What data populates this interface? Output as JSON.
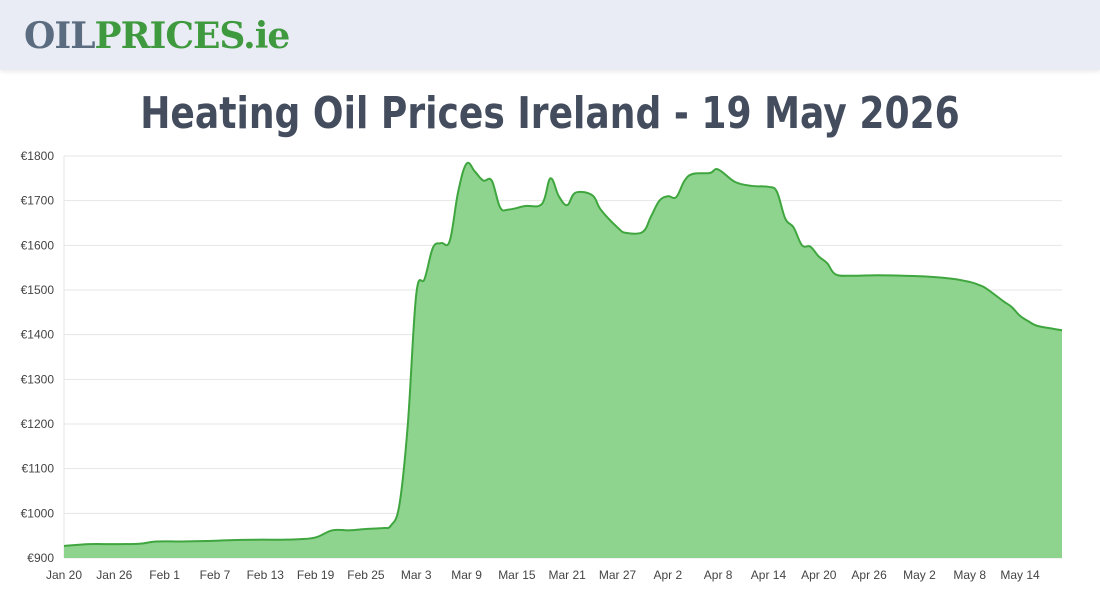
{
  "header": {
    "logo_oil": "OIL",
    "logo_prices": "PRICES",
    "logo_ie": ".ie"
  },
  "title": "Heating Oil Prices Ireland - 19 May 2026",
  "colors": {
    "area_fill": "#8fd48e",
    "line": "#3fa63f",
    "grid": "#e6e6e6",
    "header_bg": "#e9ecf4"
  },
  "chart_data": {
    "type": "area",
    "title": "Heating Oil Prices Ireland - 19 May 2026",
    "xlabel": "",
    "ylabel": "",
    "ylim": [
      900,
      1800
    ],
    "yticks": [
      900,
      1000,
      1100,
      1200,
      1300,
      1400,
      1500,
      1600,
      1700,
      1800
    ],
    "ytick_labels": [
      "€900",
      "€1000",
      "€1100",
      "€1200",
      "€1300",
      "€1400",
      "€1500",
      "€1600",
      "€1700",
      "€1800"
    ],
    "xrange": [
      "2026-01-20",
      "2026-05-19"
    ],
    "xticks": [
      "2026-01-20",
      "2026-01-26",
      "2026-02-01",
      "2026-02-07",
      "2026-02-13",
      "2026-02-19",
      "2026-02-25",
      "2026-03-03",
      "2026-03-09",
      "2026-03-15",
      "2026-03-21",
      "2026-03-27",
      "2026-04-02",
      "2026-04-08",
      "2026-04-14",
      "2026-04-20",
      "2026-04-26",
      "2026-05-02",
      "2026-05-08",
      "2026-05-14"
    ],
    "xtick_labels": [
      "Jan 20",
      "Jan 26",
      "Feb 1",
      "Feb 7",
      "Feb 13",
      "Feb 19",
      "Feb 25",
      "Mar 3",
      "Mar 9",
      "Mar 15",
      "Mar 21",
      "Mar 27",
      "Apr 2",
      "Apr 8",
      "Apr 14",
      "Apr 20",
      "Apr 26",
      "May 2",
      "May 8",
      "May 14"
    ],
    "grid": true,
    "legend": "none",
    "series": [
      {
        "points": [
          [
            "2026-01-20",
            927
          ],
          [
            "2026-01-23",
            931
          ],
          [
            "2026-01-26",
            931
          ],
          [
            "2026-01-29",
            932
          ],
          [
            "2026-01-31",
            937
          ],
          [
            "2026-02-03",
            937
          ],
          [
            "2026-02-06",
            938
          ],
          [
            "2026-02-09",
            940
          ],
          [
            "2026-02-12",
            941
          ],
          [
            "2026-02-15",
            941
          ],
          [
            "2026-02-17",
            942
          ],
          [
            "2026-02-19",
            946
          ],
          [
            "2026-02-21",
            962
          ],
          [
            "2026-02-23",
            962
          ],
          [
            "2026-02-25",
            965
          ],
          [
            "2026-02-27",
            967
          ],
          [
            "2026-02-28",
            973
          ],
          [
            "2026-03-01",
            1020
          ],
          [
            "2026-03-02",
            1200
          ],
          [
            "2026-03-03",
            1490
          ],
          [
            "2026-03-04",
            1525
          ],
          [
            "2026-03-05",
            1595
          ],
          [
            "2026-03-06",
            1605
          ],
          [
            "2026-03-07",
            1610
          ],
          [
            "2026-03-08",
            1720
          ],
          [
            "2026-03-09",
            1783
          ],
          [
            "2026-03-10",
            1765
          ],
          [
            "2026-03-11",
            1745
          ],
          [
            "2026-03-12",
            1745
          ],
          [
            "2026-03-13",
            1685
          ],
          [
            "2026-03-14",
            1680
          ],
          [
            "2026-03-16",
            1688
          ],
          [
            "2026-03-18",
            1693
          ],
          [
            "2026-03-19",
            1750
          ],
          [
            "2026-03-20",
            1710
          ],
          [
            "2026-03-21",
            1690
          ],
          [
            "2026-03-22",
            1718
          ],
          [
            "2026-03-24",
            1712
          ],
          [
            "2026-03-25",
            1680
          ],
          [
            "2026-03-27",
            1640
          ],
          [
            "2026-03-28",
            1628
          ],
          [
            "2026-03-30",
            1630
          ],
          [
            "2026-03-31",
            1665
          ],
          [
            "2026-04-01",
            1700
          ],
          [
            "2026-04-02",
            1710
          ],
          [
            "2026-04-03",
            1708
          ],
          [
            "2026-04-04",
            1745
          ],
          [
            "2026-04-05",
            1760
          ],
          [
            "2026-04-07",
            1762
          ],
          [
            "2026-04-08",
            1770
          ],
          [
            "2026-04-10",
            1742
          ],
          [
            "2026-04-12",
            1733
          ],
          [
            "2026-04-14",
            1731
          ],
          [
            "2026-04-15",
            1720
          ],
          [
            "2026-04-16",
            1660
          ],
          [
            "2026-04-17",
            1640
          ],
          [
            "2026-04-18",
            1600
          ],
          [
            "2026-04-19",
            1597
          ],
          [
            "2026-04-20",
            1575
          ],
          [
            "2026-04-21",
            1560
          ],
          [
            "2026-04-22",
            1535
          ],
          [
            "2026-04-24",
            1532
          ],
          [
            "2026-04-27",
            1533
          ],
          [
            "2026-04-30",
            1532
          ],
          [
            "2026-05-03",
            1530
          ],
          [
            "2026-05-06",
            1525
          ],
          [
            "2026-05-08",
            1518
          ],
          [
            "2026-05-09",
            1512
          ],
          [
            "2026-05-10",
            1503
          ],
          [
            "2026-05-12",
            1475
          ],
          [
            "2026-05-13",
            1462
          ],
          [
            "2026-05-14",
            1442
          ],
          [
            "2026-05-15",
            1430
          ],
          [
            "2026-05-16",
            1420
          ],
          [
            "2026-05-18",
            1413
          ],
          [
            "2026-05-19",
            1410
          ]
        ]
      }
    ]
  }
}
